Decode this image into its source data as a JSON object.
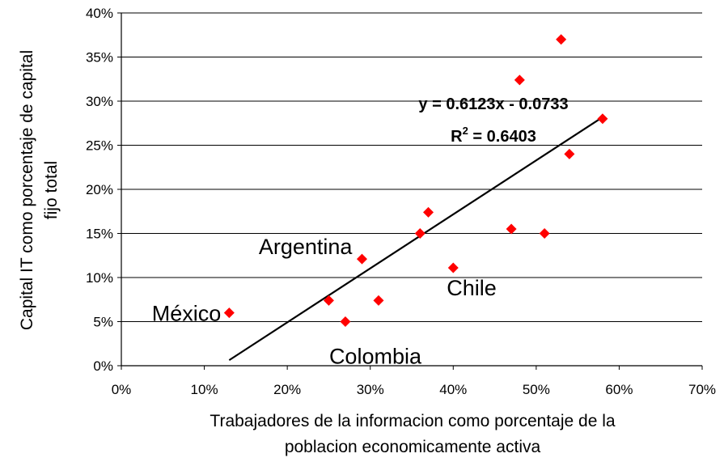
{
  "chart_data": {
    "type": "scatter",
    "xlabel_lines": [
      "Trabajadores de la informacion como porcentaje de la",
      "poblacion economicamente activa"
    ],
    "ylabel_lines": [
      "Capital IT como porcentaje de capital",
      "fijo total"
    ],
    "xlim": [
      0,
      0.7
    ],
    "ylim": [
      0,
      0.4
    ],
    "x_ticks": [
      0,
      0.1,
      0.2,
      0.3,
      0.4,
      0.5,
      0.6,
      0.7
    ],
    "x_tick_labels": [
      "0%",
      "10%",
      "20%",
      "30%",
      "40%",
      "50%",
      "60%",
      "70%"
    ],
    "y_ticks": [
      0,
      0.05,
      0.1,
      0.15,
      0.2,
      0.25,
      0.3,
      0.35,
      0.4
    ],
    "y_tick_labels": [
      "0%",
      "5%",
      "10%",
      "15%",
      "20%",
      "25%",
      "30%",
      "35%",
      "40%"
    ],
    "grid": "horizontal",
    "marker_color": "#ff0000",
    "trendline_color": "#000000",
    "points": [
      {
        "x": 0.13,
        "y": 0.06
      },
      {
        "x": 0.25,
        "y": 0.074
      },
      {
        "x": 0.27,
        "y": 0.05
      },
      {
        "x": 0.29,
        "y": 0.121
      },
      {
        "x": 0.31,
        "y": 0.074
      },
      {
        "x": 0.36,
        "y": 0.15
      },
      {
        "x": 0.37,
        "y": 0.174
      },
      {
        "x": 0.4,
        "y": 0.111
      },
      {
        "x": 0.47,
        "y": 0.155
      },
      {
        "x": 0.48,
        "y": 0.324
      },
      {
        "x": 0.51,
        "y": 0.15
      },
      {
        "x": 0.53,
        "y": 0.37
      },
      {
        "x": 0.54,
        "y": 0.24
      },
      {
        "x": 0.58,
        "y": 0.28
      }
    ],
    "trendline": {
      "slope": 0.6123,
      "intercept": -0.0733,
      "x_start": 0.13,
      "x_end": 0.58
    },
    "equation_text": "y = 0.6123x - 0.0733",
    "r2_prefix": "R",
    "r2_exponent": "2",
    "r2_suffix": " = 0.6403",
    "annotations": [
      {
        "text": "Argentina",
        "x": 0.29,
        "y": 0.121
      },
      {
        "text": "Chile",
        "x": 0.4,
        "y": 0.111
      },
      {
        "text": "México",
        "x": 0.13,
        "y": 0.06
      },
      {
        "text": "Colombia",
        "x": 0.27,
        "y": 0.05
      }
    ]
  }
}
